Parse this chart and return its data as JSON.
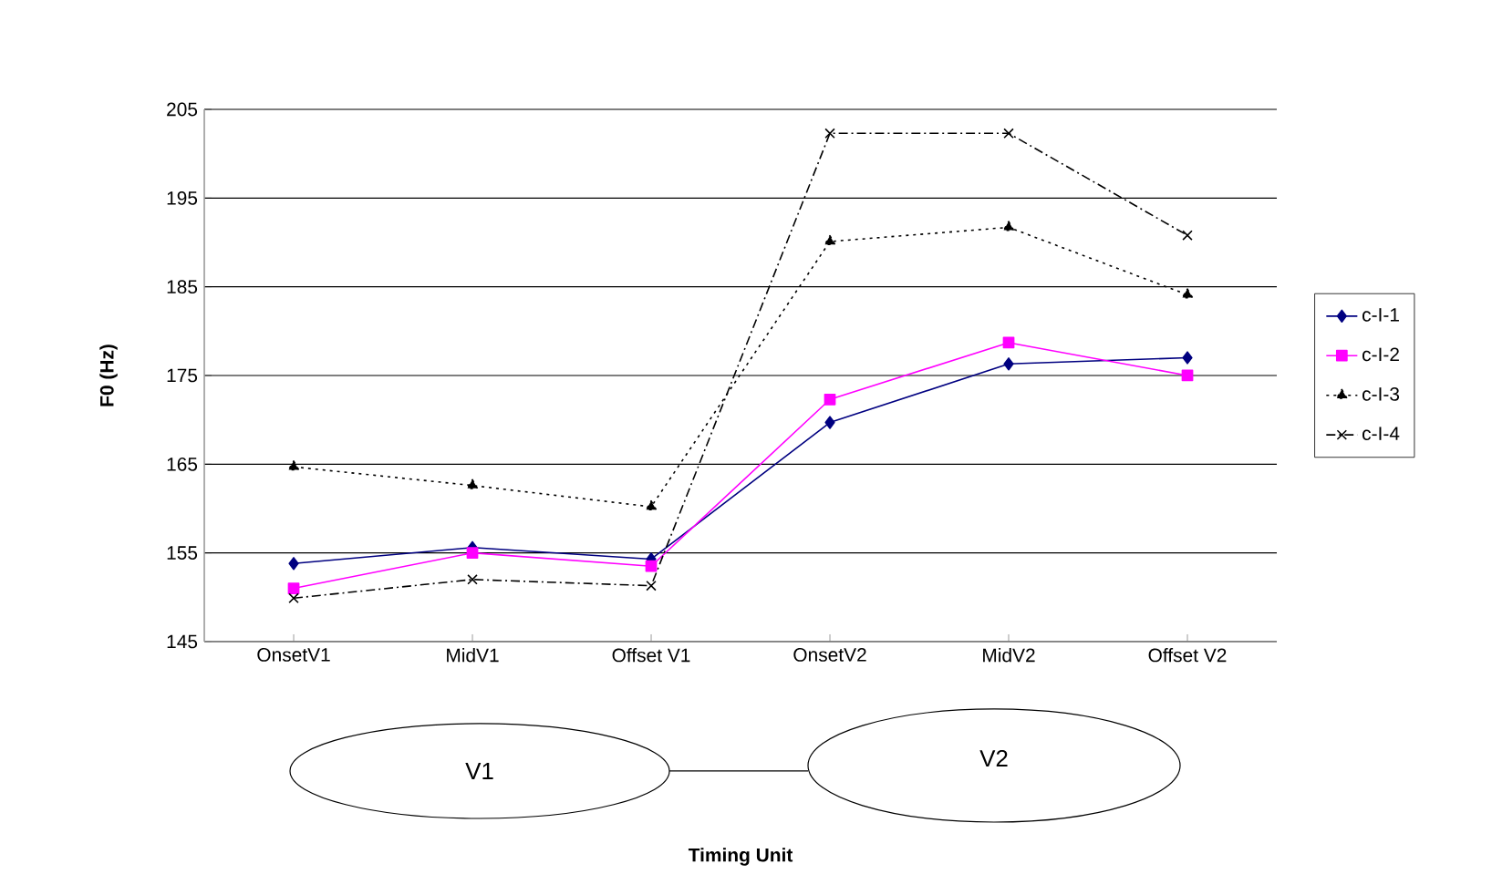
{
  "chart_data": {
    "type": "line",
    "ylabel": "F0 (Hz)",
    "categories": [
      "OnsetV1",
      "MidV1",
      "Offset V1",
      "OnsetV2",
      "MidV2",
      "Offset V2"
    ],
    "series": [
      {
        "name": "c-I-1",
        "color": "#000080",
        "marker": "diamond",
        "line_style": "solid",
        "values": [
          153.8,
          155.6,
          154.3,
          169.7,
          176.3,
          177.0
        ]
      },
      {
        "name": "c-I-2",
        "color": "#ff00ff",
        "marker": "square",
        "line_style": "solid",
        "values": [
          151.0,
          155.0,
          153.5,
          172.3,
          178.7,
          175.0
        ]
      },
      {
        "name": "c-I-3",
        "color": "#000000",
        "marker": "triangle",
        "line_style": "dotted",
        "values": [
          164.7,
          162.6,
          160.2,
          190.1,
          191.7,
          184.1
        ]
      },
      {
        "name": "c-I-4",
        "color": "#000000",
        "marker": "cross",
        "line_style": "dashed",
        "values": [
          149.9,
          152.0,
          151.3,
          202.3,
          202.3,
          190.8
        ]
      }
    ],
    "ylim": [
      145,
      205
    ],
    "yticks": [
      145,
      155,
      165,
      175,
      185,
      195,
      205
    ],
    "grid": "y",
    "legend": "right",
    "annotations": [
      "V1",
      "V2",
      "Timing Unit"
    ]
  }
}
